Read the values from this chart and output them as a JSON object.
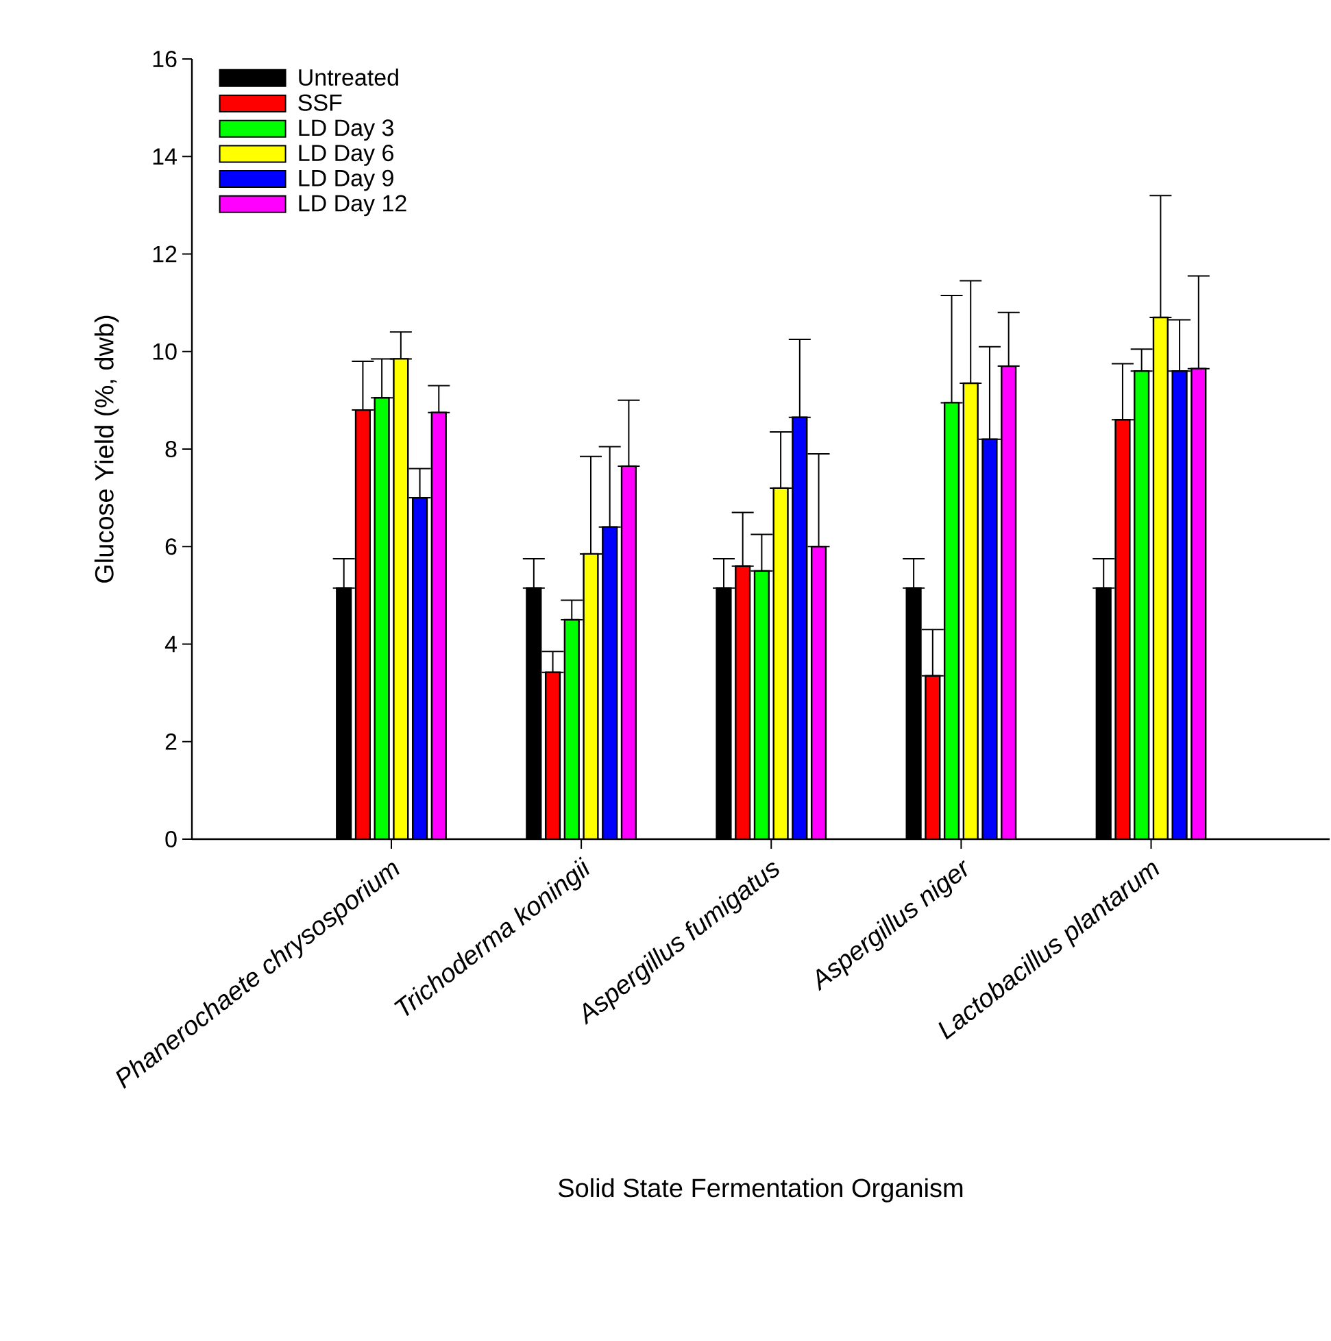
{
  "chart_data": {
    "type": "bar",
    "xlabel": "Solid State Fermentation Organism",
    "ylabel": "Glucose Yield (%, dwb)",
    "categories": [
      "Phanerochaete chrysosporium",
      "Trichoderma koningii",
      "Aspergillus fumigatus",
      "Aspergillus niger",
      "Lactobacillus plantarum"
    ],
    "series": [
      {
        "name": "Untreated",
        "color": "#000000",
        "values": [
          5.15,
          5.15,
          5.15,
          5.15,
          5.15
        ],
        "errors": [
          [
            5.15,
            5.75
          ],
          [
            5.15,
            5.75
          ],
          [
            5.15,
            5.75
          ],
          [
            5.15,
            5.75
          ],
          [
            5.15,
            5.75
          ]
        ]
      },
      {
        "name": "SSF",
        "color": "#ff0000",
        "values": [
          8.8,
          3.42,
          5.6,
          3.35,
          8.6
        ],
        "errors": [
          [
            8.8,
            9.8
          ],
          [
            3.42,
            3.85
          ],
          [
            5.6,
            6.7
          ],
          [
            3.35,
            4.3
          ],
          [
            8.6,
            9.75
          ]
        ]
      },
      {
        "name": "LD Day 3",
        "color": "#00ff00",
        "values": [
          9.05,
          4.5,
          5.5,
          8.95,
          9.6
        ],
        "errors": [
          [
            9.05,
            9.85
          ],
          [
            4.5,
            4.9
          ],
          [
            5.5,
            6.25
          ],
          [
            8.95,
            11.15
          ],
          [
            9.6,
            10.05
          ]
        ]
      },
      {
        "name": "LD Day 6",
        "color": "#ffff00",
        "values": [
          9.85,
          5.85,
          7.2,
          9.35,
          10.7
        ],
        "errors": [
          [
            9.85,
            10.4
          ],
          [
            5.85,
            7.85
          ],
          [
            7.2,
            8.35
          ],
          [
            9.35,
            11.45
          ],
          [
            10.7,
            13.2
          ]
        ]
      },
      {
        "name": "LD Day 9",
        "color": "#0000ff",
        "values": [
          7.0,
          6.4,
          8.65,
          8.2,
          9.6
        ],
        "errors": [
          [
            7.0,
            7.6
          ],
          [
            6.4,
            8.05
          ],
          [
            8.65,
            10.25
          ],
          [
            8.2,
            10.1
          ],
          [
            9.6,
            10.65
          ]
        ]
      },
      {
        "name": "LD Day 12",
        "color": "#ff00ff",
        "values": [
          8.75,
          7.65,
          6.0,
          9.7,
          9.65
        ],
        "errors": [
          [
            8.75,
            9.3
          ],
          [
            7.65,
            9.0
          ],
          [
            6.0,
            7.9
          ],
          [
            9.7,
            10.8
          ],
          [
            9.65,
            11.55
          ]
        ]
      }
    ],
    "ylim": [
      0,
      16
    ],
    "yticks": [
      0,
      2,
      4,
      6,
      8,
      10,
      12,
      14,
      16
    ],
    "grid": false,
    "legend": "top left"
  }
}
